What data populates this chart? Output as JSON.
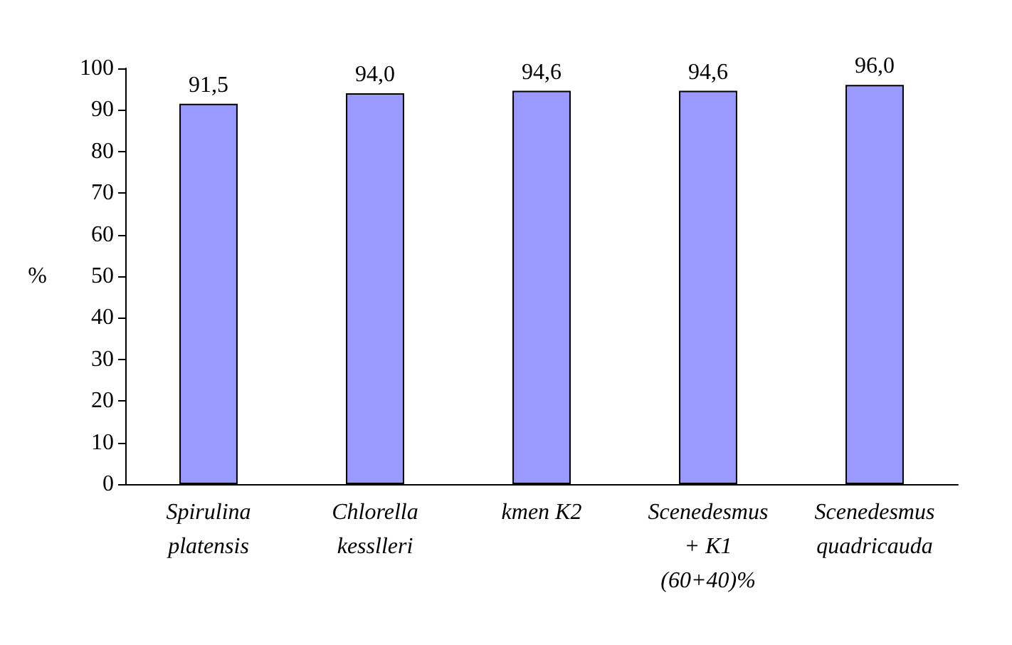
{
  "chart_data": {
    "type": "bar",
    "ylabel": "%",
    "categories": [
      "Spirulina\nplatensis",
      "Chlorella\nkesslleri",
      "kmen K2",
      "Scenedesmus\n+ K1\n(60+40)%",
      "Scenedesmus\nquadricauda"
    ],
    "values": [
      91.5,
      94.0,
      94.6,
      94.6,
      96.0
    ],
    "value_labels": [
      "91,5",
      "94,0",
      "94,6",
      "94,6",
      "96,0"
    ],
    "color": "#9999ff",
    "ylim": [
      0,
      100
    ],
    "yticks": [
      0,
      10,
      20,
      30,
      40,
      50,
      60,
      70,
      80,
      90,
      100
    ],
    "grid": false
  }
}
